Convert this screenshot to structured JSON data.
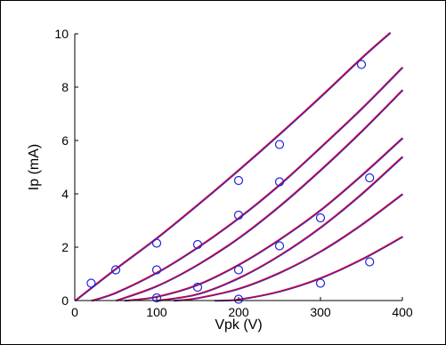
{
  "chart_data": {
    "type": "line",
    "title": "",
    "xlabel": "Vpk (V)",
    "ylabel": "Ip (mA)",
    "xlim": [
      0,
      400
    ],
    "ylim": [
      0,
      10
    ],
    "x_ticks": [
      0,
      100,
      200,
      300,
      400
    ],
    "y_ticks": [
      0,
      2,
      4,
      6,
      8,
      10
    ],
    "grid": false,
    "legend": "none",
    "colors": {
      "model_curve": "#cc0033",
      "measured_curve": "#3333cc",
      "marker": "#2222dd"
    },
    "marker": "circle",
    "series": [
      {
        "x": [
          0,
          50,
          100,
          150,
          200,
          250,
          300,
          350,
          385
        ],
        "y": [
          0.0,
          1.2,
          2.35,
          3.6,
          4.9,
          6.25,
          7.65,
          9.1,
          10.05
        ],
        "points": [
          [
            20,
            0.65
          ],
          [
            50,
            1.15
          ],
          [
            100,
            2.15
          ],
          [
            200,
            4.5
          ],
          [
            250,
            5.85
          ],
          [
            350,
            8.85
          ]
        ]
      },
      {
        "x": [
          20,
          50,
          100,
          150,
          200,
          250,
          300,
          350,
          400
        ],
        "y": [
          0.0,
          0.3,
          1.05,
          2.0,
          3.1,
          4.35,
          5.75,
          7.2,
          8.75
        ],
        "points": [
          [
            100,
            1.15
          ],
          [
            150,
            2.1
          ],
          [
            200,
            3.2
          ],
          [
            250,
            4.45
          ]
        ]
      },
      {
        "x": [
          60,
          100,
          150,
          200,
          250,
          300,
          350,
          400
        ],
        "y": [
          0.0,
          0.15,
          0.6,
          1.35,
          2.3,
          3.4,
          4.7,
          6.1
        ],
        "points": [
          [
            100,
            0.1
          ],
          [
            150,
            0.5
          ],
          [
            200,
            1.15
          ],
          [
            250,
            2.05
          ],
          [
            300,
            3.1
          ]
        ]
      },
      {
        "x": [
          120,
          150,
          200,
          250,
          300,
          350,
          400
        ],
        "y": [
          0.0,
          0.1,
          0.45,
          1.05,
          1.85,
          2.85,
          4.0
        ],
        "points": [
          [
            200,
            0.05
          ]
        ]
      },
      {
        "x": [
          170,
          200,
          250,
          300,
          350,
          400
        ],
        "y": [
          0.0,
          0.05,
          0.35,
          0.85,
          1.55,
          2.4
        ],
        "points": [
          [
            300,
            0.65
          ],
          [
            360,
            1.45
          ]
        ]
      },
      {
        "x": [
          100,
          150,
          200,
          250,
          300,
          350,
          400
        ],
        "y": [
          0.0,
          0.25,
          0.85,
          1.7,
          2.75,
          4.0,
          5.4
        ],
        "points": [
          [
            360,
            4.6
          ]
        ]
      },
      {
        "x": [
          50,
          100,
          150,
          200,
          250,
          300,
          350,
          400
        ],
        "y": [
          0.0,
          0.55,
          1.35,
          2.35,
          3.55,
          4.9,
          6.35,
          7.9
        ],
        "points": []
      }
    ]
  }
}
